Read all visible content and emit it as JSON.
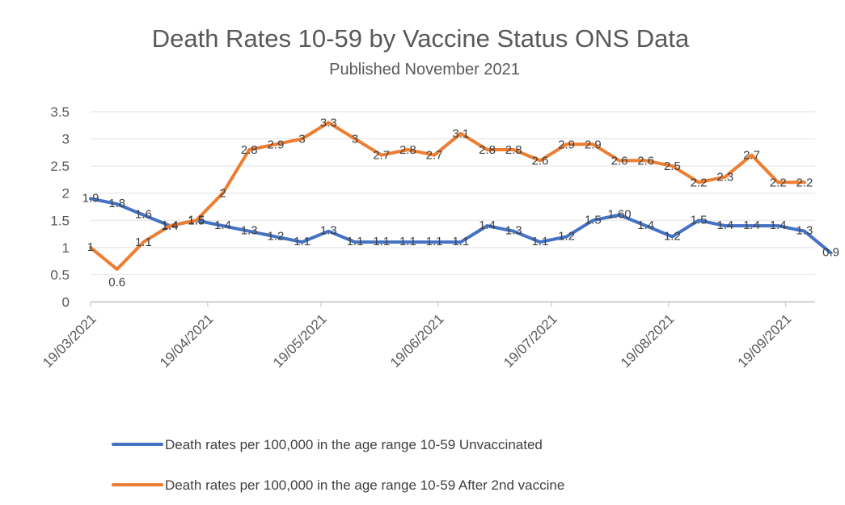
{
  "chart_data": {
    "type": "line",
    "title": "Death Rates 10-59  by Vaccine Status ONS Data",
    "subtitle": "Published November 2021",
    "xlabel": "",
    "ylabel": "",
    "ylim": [
      0,
      3.5
    ],
    "yticks": [
      "0",
      "0.5",
      "1",
      "1.5",
      "2",
      "2.5",
      "3",
      "3.5"
    ],
    "xtick_labels": [
      "19/03/2021",
      "19/04/2021",
      "19/05/2021",
      "19/06/2021",
      "19/07/2021",
      "19/08/2021",
      "19/09/2021"
    ],
    "x_start": "2021-03-19",
    "x_step_days": 7,
    "grid": true,
    "legend_position": "bottom",
    "series": [
      {
        "name": "Death rates per 100,000 in the age range 10-59 Unvaccinated",
        "color": "#4472C4",
        "values": [
          1.9,
          1.8,
          1.6,
          1.4,
          1.5,
          1.4,
          1.3,
          1.2,
          1.1,
          1.3,
          1.1,
          1.1,
          1.1,
          1.1,
          1.1,
          1.4,
          1.3,
          1.1,
          1.2,
          1.5,
          1.6,
          1.4,
          1.2,
          1.5,
          1.4,
          1.4,
          1.4,
          1.3,
          0.9
        ],
        "labels": [
          "1.9",
          "1.8",
          "1.6",
          "1.4",
          "1.5",
          "1.4",
          "1.3",
          "1.2",
          "1.1",
          "1.3",
          "1.1",
          "1.1",
          "1.1",
          "1.1",
          "1.1",
          "1.4",
          "1.3",
          "1.1",
          "1.2",
          "1.5",
          "1.60",
          "1.4",
          "1.2",
          "1.5",
          "1.4",
          "1.4",
          "1.4",
          "1.3",
          "0.9"
        ]
      },
      {
        "name": "Death rates per 100,000 in the age range 10-59 After 2nd  vaccine",
        "color": "#ED7D31",
        "values": [
          1,
          0.6,
          1.1,
          1.4,
          1.5,
          2,
          2.8,
          2.9,
          3,
          3.3,
          3,
          2.7,
          2.8,
          2.7,
          3.1,
          2.8,
          2.8,
          2.6,
          2.9,
          2.9,
          2.6,
          2.6,
          2.5,
          2.2,
          2.3,
          2.7,
          2.2,
          2.2
        ],
        "labels": [
          "1",
          "0.6",
          "1.1",
          "1.4",
          "1.5",
          "2",
          "2.8",
          "2.9",
          "3",
          "3.3",
          "3",
          "2.7",
          "2.8",
          "2.7",
          "3.1",
          "2.8",
          "2.8",
          "2.6",
          "2.9",
          "2.9",
          "2.6",
          "2.6",
          "2.5",
          "2.2",
          "2.3",
          "2.7",
          "2.2",
          "2.2"
        ]
      }
    ]
  }
}
